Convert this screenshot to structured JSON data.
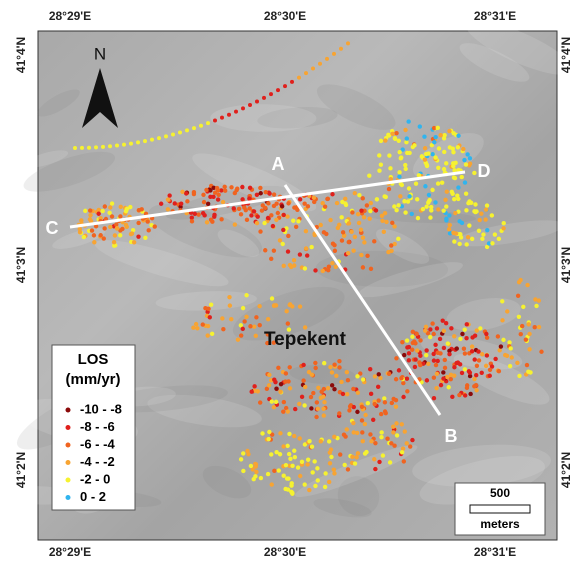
{
  "map": {
    "top_ticks": [
      "28°29'E",
      "28°30'E",
      "28°31'E"
    ],
    "bottom_ticks": [
      "28°29'E",
      "28°30'E",
      "28°31'E"
    ],
    "left_ticks": [
      "41°4'N",
      "41°3'N",
      "41°2'N"
    ],
    "right_ticks": [
      "41°4'N",
      "41°3'N",
      "41°2'N"
    ],
    "north": "N",
    "place": "Tepekent",
    "profile_labels": [
      "A",
      "B",
      "C",
      "D"
    ],
    "legend": {
      "title": [
        "LOS",
        "(mm/yr)"
      ],
      "items": [
        {
          "label": "-10 - -8",
          "color": "#8b0a0a"
        },
        {
          "label": "-8 - -6",
          "color": "#e0201c"
        },
        {
          "label": "-6 - -4",
          "color": "#f06420"
        },
        {
          "label": "-4 - -2",
          "color": "#f8a432"
        },
        {
          "label": "-2 - 0",
          "color": "#f6f230"
        },
        {
          "label": "0 - 2",
          "color": "#30b4ee"
        }
      ]
    },
    "scale": {
      "distance": "500",
      "unit": "meters"
    }
  }
}
